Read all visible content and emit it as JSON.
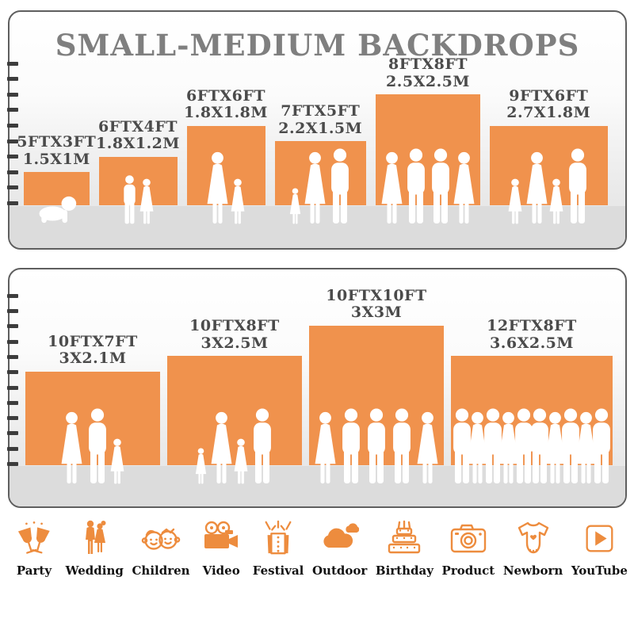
{
  "title": "SMALL-MEDIUM BACKDROPS",
  "colors": {
    "orange": "#F0924D",
    "icon_orange": "#ED8C3E",
    "title_gray": "#7F7F7F",
    "label_gray": "#4B4B4B",
    "tick_dark": "#3D3D3D",
    "floor_gray": "#DCDCDC"
  },
  "chart_data": [
    {
      "type": "bar",
      "title": "SMALL-MEDIUM BACKDROPS",
      "axis": {
        "min": 1,
        "max": 10,
        "unit": "FT"
      },
      "bars": [
        {
          "label_ft": "5FTX3FT",
          "label_m": "1.5X1M",
          "width_ft": 5,
          "height_ft": 3,
          "people": [
            "baby"
          ]
        },
        {
          "label_ft": "6FTX4FT",
          "label_m": "1.8X1.2M",
          "width_ft": 6,
          "height_ft": 4,
          "people": [
            "boy",
            "girl"
          ]
        },
        {
          "label_ft": "6FTX6FT",
          "label_m": "1.8X1.8M",
          "width_ft": 6,
          "height_ft": 6,
          "people": [
            "woman",
            "girl"
          ]
        },
        {
          "label_ft": "7FTX5FT",
          "label_m": "2.2X1.5M",
          "width_ft": 7,
          "height_ft": 5,
          "people": [
            "toddler",
            "woman",
            "man"
          ]
        },
        {
          "label_ft": "8FTX8FT",
          "label_m": "2.5X2.5M",
          "width_ft": 8,
          "height_ft": 8,
          "people": [
            "woman",
            "man",
            "man",
            "woman"
          ]
        },
        {
          "label_ft": "9FTX6FT",
          "label_m": "2.7X1.8M",
          "width_ft": 9,
          "height_ft": 6,
          "people": [
            "girl",
            "woman",
            "girl",
            "man"
          ]
        }
      ]
    },
    {
      "type": "bar",
      "title": "",
      "axis": {
        "min": 1,
        "max": 12,
        "unit": "FT"
      },
      "bars": [
        {
          "label_ft": "10FTX7FT",
          "label_m": "3X2.1M",
          "width_ft": 10,
          "height_ft": 7,
          "people": [
            "woman",
            "man",
            "girl"
          ]
        },
        {
          "label_ft": "10FTX8FT",
          "label_m": "3X2.5M",
          "width_ft": 10,
          "height_ft": 8,
          "people": [
            "toddler",
            "woman",
            "girl",
            "man"
          ]
        },
        {
          "label_ft": "10FTX10FT",
          "label_m": "3X3M",
          "width_ft": 10,
          "height_ft": 10,
          "people": [
            "woman",
            "man",
            "man",
            "man",
            "woman"
          ]
        },
        {
          "label_ft": "12FTX8FT",
          "label_m": "3.6X2.5M",
          "width_ft": 12,
          "height_ft": 8,
          "people": [
            "man",
            "woman",
            "man",
            "woman",
            "man",
            "man",
            "woman",
            "man",
            "woman",
            "man"
          ]
        }
      ]
    }
  ],
  "categories": [
    {
      "label": "Party",
      "icon": "party-icon"
    },
    {
      "label": "Wedding",
      "icon": "wedding-icon"
    },
    {
      "label": "Children",
      "icon": "children-icon"
    },
    {
      "label": "Video",
      "icon": "video-icon"
    },
    {
      "label": "Festival",
      "icon": "festival-icon"
    },
    {
      "label": "Outdoor",
      "icon": "outdoor-icon"
    },
    {
      "label": "Birthday",
      "icon": "birthday-icon"
    },
    {
      "label": "Product",
      "icon": "product-icon"
    },
    {
      "label": "Newborn",
      "icon": "newborn-icon"
    },
    {
      "label": "YouTube",
      "icon": "youtube-icon"
    }
  ]
}
